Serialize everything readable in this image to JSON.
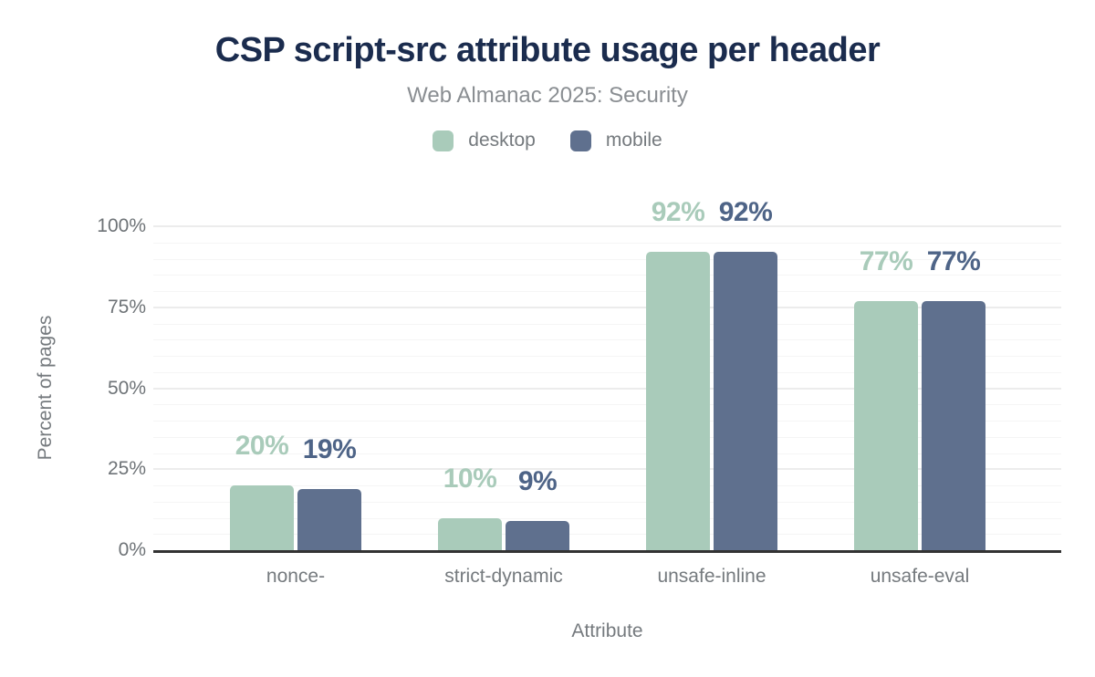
{
  "chart_data": {
    "type": "bar",
    "title": "CSP script-src attribute usage per header",
    "subtitle": "Web Almanac 2025: Security",
    "categories": [
      "nonce-",
      "strict-dynamic",
      "unsafe-inline",
      "unsafe-eval"
    ],
    "series": [
      {
        "name": "desktop",
        "color": "#a9cbba",
        "label_color": "#a9cbba",
        "values": [
          20,
          10,
          92,
          77
        ]
      },
      {
        "name": "mobile",
        "color": "#5f708e",
        "label_color": "#4e6487",
        "values": [
          19,
          9,
          92,
          77
        ]
      }
    ],
    "xlabel": "Attribute",
    "ylabel": "Percent of pages",
    "ylim": [
      0,
      100
    ],
    "y_tick_major_step": 25,
    "y_tick_minor_step": 5,
    "y_tick_suffix": "%",
    "value_suffix": "%",
    "legend_position": "top",
    "grid": true,
    "colors": {
      "title": "#1b2c4e",
      "subtitle": "#8a8e92",
      "axis_line": "#333333",
      "tick_text": "#6e7377",
      "gridline_major": "#ececec",
      "gridline_minor": "#f5f5f5"
    }
  }
}
